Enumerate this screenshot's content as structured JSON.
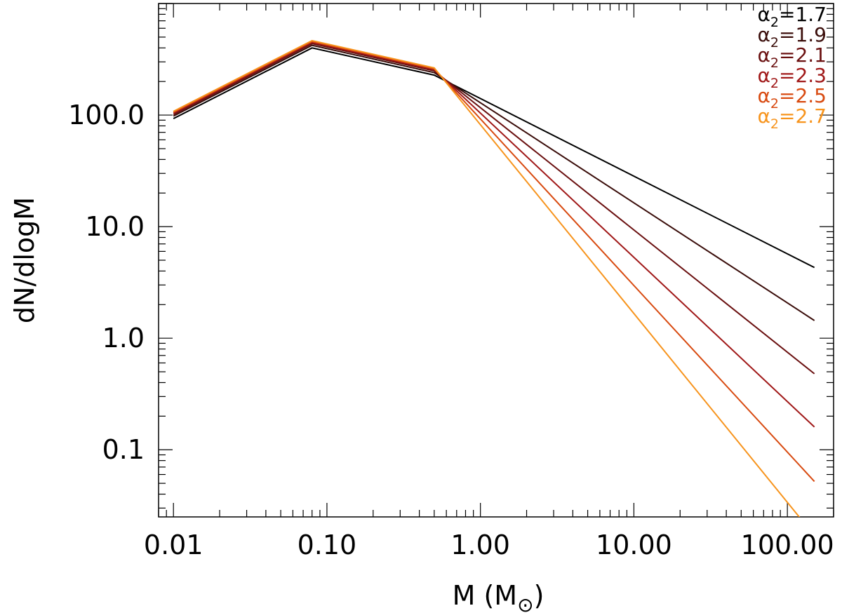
{
  "chart_data": {
    "type": "line",
    "title": "",
    "xlabel": "M (M",
    "xlabel_symbol": "⊙",
    "xlabel_close": ")",
    "ylabel": "dN/dlogM",
    "xscale": "log",
    "yscale": "log",
    "xlim": [
      0.008,
      200
    ],
    "ylim": [
      0.025,
      1000
    ],
    "grid": false,
    "legend_placement": "top-right",
    "x_ticks": [
      {
        "value": 0.01,
        "label": "0.01"
      },
      {
        "value": 0.1,
        "label": "0.10"
      },
      {
        "value": 1,
        "label": "1.00"
      },
      {
        "value": 10,
        "label": "10.00"
      },
      {
        "value": 100,
        "label": "100.00"
      }
    ],
    "y_ticks": [
      {
        "value": 0.1,
        "label": "0.1"
      },
      {
        "value": 1,
        "label": "1.0"
      },
      {
        "value": 10,
        "label": "10.0"
      },
      {
        "value": 100,
        "label": "100.0"
      }
    ],
    "legend_symbol": "α",
    "legend_subscript": "2",
    "series": [
      {
        "name": "=1.7",
        "color": "#000000",
        "x": [
          0.01,
          0.08,
          0.5,
          150
        ],
        "y": [
          93,
          400,
          228,
          4.3
        ]
      },
      {
        "name": "=1.9",
        "color": "#3a0d0a",
        "x": [
          0.01,
          0.08,
          0.5,
          150
        ],
        "y": [
          98,
          422,
          240,
          1.44
        ]
      },
      {
        "name": "=2.1",
        "color": "#6a1010",
        "x": [
          0.01,
          0.08,
          0.5,
          150
        ],
        "y": [
          101,
          437,
          249,
          0.48
        ]
      },
      {
        "name": "=2.3",
        "color": "#a01818",
        "x": [
          0.01,
          0.08,
          0.5,
          150
        ],
        "y": [
          104,
          448,
          255,
          0.16
        ]
      },
      {
        "name": "=2.5",
        "color": "#d84a10",
        "x": [
          0.01,
          0.08,
          0.5,
          150
        ],
        "y": [
          106,
          457,
          260,
          0.052
        ]
      },
      {
        "name": "=2.7",
        "color": "#f7941d",
        "x": [
          0.01,
          0.08,
          0.5,
          150
        ],
        "y": [
          108,
          465,
          265,
          0.017
        ]
      }
    ]
  }
}
